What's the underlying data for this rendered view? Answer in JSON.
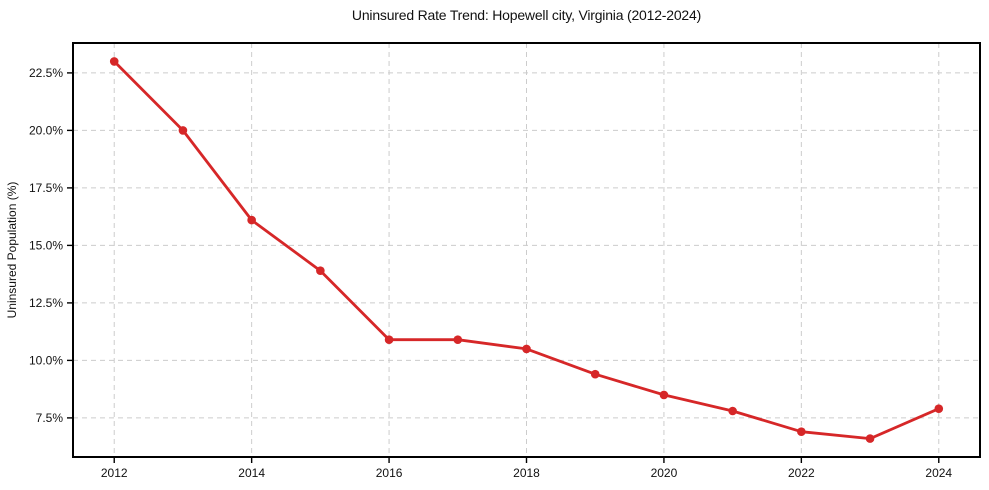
{
  "figure": {
    "title": "Uninsured Rate Trend: Hopewell city, Virginia (2012-2024)"
  },
  "chart_data": {
    "type": "line",
    "title": "Uninsured Rate Trend: Hopewell city, Virginia (2012-2024)",
    "xlabel": "",
    "ylabel": "Uninsured Population (%)",
    "x": [
      2012,
      2013,
      2014,
      2015,
      2016,
      2017,
      2018,
      2019,
      2020,
      2021,
      2022,
      2023,
      2024
    ],
    "values": [
      23.0,
      20.0,
      16.1,
      13.9,
      10.9,
      10.9,
      10.5,
      9.4,
      8.5,
      7.8,
      6.9,
      6.6,
      7.9
    ],
    "xlim": [
      2011.4,
      2024.6
    ],
    "ylim": [
      5.8,
      23.8
    ],
    "xticks": [
      2012,
      2014,
      2016,
      2018,
      2020,
      2022,
      2024
    ],
    "xtick_labels": [
      "2012",
      "2014",
      "2016",
      "2018",
      "2020",
      "2022",
      "2024"
    ],
    "yticks": [
      7.5,
      10.0,
      12.5,
      15.0,
      17.5,
      20.0,
      22.5
    ],
    "ytick_labels": [
      "7.5%",
      "10.0%",
      "12.5%",
      "15.0%",
      "17.5%",
      "20.0%",
      "22.5%"
    ],
    "grid": true,
    "grid_style": "dashed",
    "legend": "none",
    "line_color": "#d62728",
    "marker": "circle",
    "grid_color": "#cccccc",
    "spine_color": "#000000",
    "text_color": "#111111",
    "background": "#ffffff"
  }
}
